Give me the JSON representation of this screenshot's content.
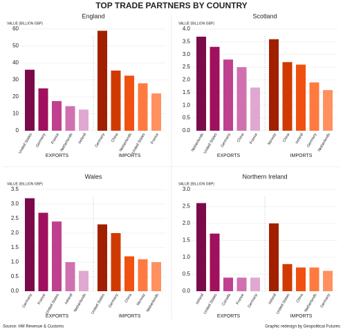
{
  "title": "TOP TRADE PARTNERS BY COUNTRY",
  "source": "Source: HM Revenue & Customs",
  "credit": "Graphic redesign by Geopolitical Futures",
  "chart_data": [
    {
      "type": "bar",
      "title": "England",
      "ylabel": "VALUE (BILLION GBP)",
      "ylim": [
        0,
        60
      ],
      "yticks": [
        0,
        10,
        20,
        30,
        40,
        50,
        60
      ],
      "groups": [
        {
          "name": "EXPORTS",
          "color": "#8b1a6b",
          "categories": [
            "United States",
            "Germany",
            "France",
            "Netherlands",
            "Ireland"
          ],
          "values": [
            36,
            25,
            17.5,
            14.5,
            12.5
          ],
          "colors": [
            "#7a0a4a",
            "#a0105e",
            "#c04090",
            "#d070b0",
            "#e0a8d0"
          ]
        },
        {
          "name": "IMPORTS",
          "color": "#c0400a",
          "categories": [
            "Germany",
            "China",
            "Netherlands",
            "United States",
            "France"
          ],
          "values": [
            59,
            35.5,
            32.5,
            28,
            22
          ],
          "colors": [
            "#a02000",
            "#d03a00",
            "#f05010",
            "#ff7a40",
            "#ff9060"
          ]
        }
      ]
    },
    {
      "type": "bar",
      "title": "Scotland",
      "ylabel": "VALUE (BILLION GBP)",
      "ylim": [
        0,
        4
      ],
      "yticks": [
        {
          "value": 0,
          "label": "0.0"
        },
        0.5,
        {
          "value": 1,
          "label": "1.0"
        },
        1.5,
        {
          "value": 2,
          "label": "2.0"
        },
        2.5,
        {
          "value": 3,
          "label": "3.0"
        },
        3.5,
        {
          "value": 4,
          "label": "4.0"
        }
      ],
      "groups": [
        {
          "name": "EXPORTS",
          "color": "#8b1a6b",
          "categories": [
            "Netherlands",
            "United States",
            "Germany",
            "China",
            "France"
          ],
          "values": [
            3.7,
            3.3,
            2.8,
            2.5,
            1.7
          ],
          "colors": [
            "#7a0a4a",
            "#a0105e",
            "#c04090",
            "#d070b0",
            "#e0a8d0"
          ]
        },
        {
          "name": "IMPORTS",
          "color": "#c0400a",
          "categories": [
            "Norway",
            "China",
            "Ireland",
            "Germany",
            "Netherlands"
          ],
          "values": [
            3.6,
            2.7,
            2.6,
            1.9,
            1.6
          ],
          "colors": [
            "#a02000",
            "#d03a00",
            "#f05010",
            "#ff7a40",
            "#ff9060"
          ]
        }
      ]
    },
    {
      "type": "bar",
      "title": "Wales",
      "ylabel": "VALUE (BILLION GBP)",
      "ylim": [
        0,
        3.5
      ],
      "yticks": [
        {
          "value": 0,
          "label": "0.0"
        },
        0.5,
        {
          "value": 1,
          "label": "1.0"
        },
        1.5,
        {
          "value": 2,
          "label": "2.0"
        },
        2.5,
        {
          "value": 3,
          "label": "3.0"
        },
        3.5
      ],
      "groups": [
        {
          "name": "EXPORTS",
          "color": "#8b1a6b",
          "categories": [
            "Germany",
            "France",
            "United States",
            "Ireland",
            "Netherlands"
          ],
          "values": [
            3.2,
            2.7,
            2.4,
            1,
            0.7
          ],
          "colors": [
            "#7a0a4a",
            "#a0105e",
            "#c04090",
            "#d070b0",
            "#e0a8d0"
          ]
        },
        {
          "name": "IMPORTS",
          "color": "#c0400a",
          "categories": [
            "United States",
            "Germany",
            "China",
            "Norway",
            "Netherlands"
          ],
          "values": [
            2.3,
            2,
            1.2,
            1.1,
            1
          ],
          "colors": [
            "#a02000",
            "#d03a00",
            "#f05010",
            "#ff7a40",
            "#ff9060"
          ]
        }
      ]
    },
    {
      "type": "bar",
      "title": "Northern Ireland",
      "ylabel": "VALUE (BILLION GBP)",
      "ylim": [
        0,
        3
      ],
      "yticks": [
        {
          "value": 0,
          "label": "0.0"
        },
        0.5,
        {
          "value": 1,
          "label": "1.0"
        },
        1.5,
        {
          "value": 2,
          "label": "2.0"
        },
        2.5,
        {
          "value": 3,
          "label": "3.0"
        }
      ],
      "groups": [
        {
          "name": "EXPORTS",
          "color": "#8b1a6b",
          "categories": [
            "Ireland",
            "United States",
            "Canada",
            "France",
            "Germany"
          ],
          "values": [
            2.6,
            1.7,
            0.4,
            0.4,
            0.4
          ],
          "colors": [
            "#7a0a4a",
            "#a0105e",
            "#c04090",
            "#d070b0",
            "#e0a8d0"
          ]
        },
        {
          "name": "IMPORTS",
          "color": "#c0400a",
          "categories": [
            "Ireland",
            "United States",
            "China",
            "Netherlands",
            "Germany"
          ],
          "values": [
            2,
            0.8,
            0.7,
            0.7,
            0.6
          ],
          "colors": [
            "#a02000",
            "#d03a00",
            "#f05010",
            "#ff7a40",
            "#ff9060"
          ]
        }
      ]
    }
  ]
}
